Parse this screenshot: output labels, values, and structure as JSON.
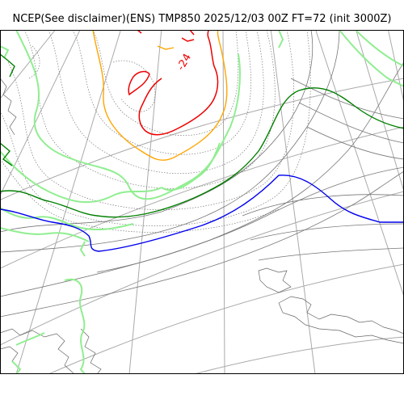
{
  "title": "NCEP(See disclaimer)(ENS) TMP850 2025/12/03 00Z FT=72 (init 3000Z)",
  "contour_label": "-24",
  "colors": {
    "background": "#ffffff",
    "frame": "#000000",
    "graticule": "#aaaaaa",
    "coastline": "#666666",
    "isotherm_minor": "#777777",
    "isotherm_light_green": "#90ee90",
    "isotherm_dark_green": "#008000",
    "isotherm_blue": "#0000ee",
    "isotherm_orange": "#ffa500",
    "isotherm_red": "#ee0000"
  }
}
